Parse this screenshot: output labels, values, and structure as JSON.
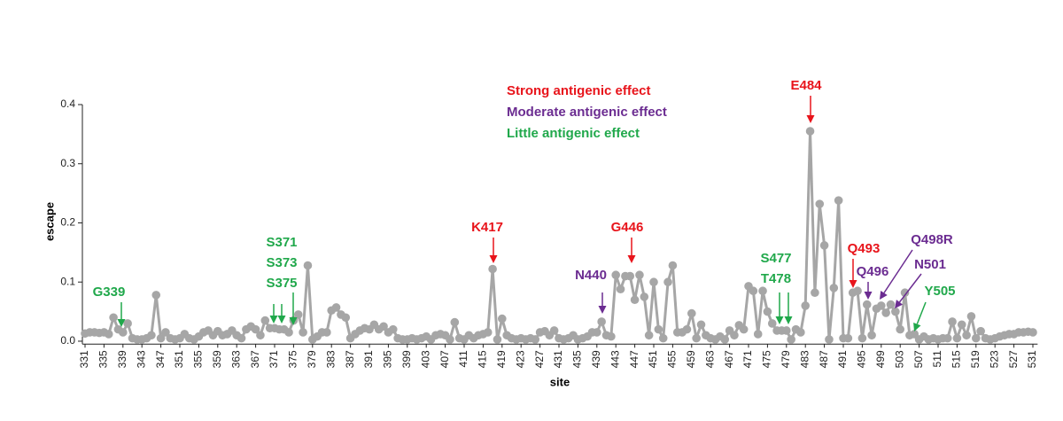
{
  "chart_data": {
    "type": "line",
    "x_label": "site",
    "y_label": "escape",
    "xlim": [
      330,
      532
    ],
    "ylim": [
      -0.005,
      0.4
    ],
    "yticks": [
      {
        "value": 0,
        "label": "0.0"
      },
      0.1,
      0.2,
      0.3,
      0.4
    ],
    "xticks": [
      331,
      335,
      339,
      343,
      347,
      351,
      355,
      359,
      363,
      367,
      371,
      375,
      379,
      383,
      387,
      391,
      395,
      399,
      403,
      407,
      411,
      415,
      419,
      423,
      427,
      431,
      435,
      439,
      443,
      447,
      451,
      455,
      459,
      463,
      467,
      471,
      475,
      479,
      483,
      487,
      491,
      495,
      499,
      503,
      507,
      511,
      515,
      519,
      523,
      527,
      531
    ],
    "color": "#a6a6a6",
    "x": [
      331,
      332,
      333,
      334,
      335,
      336,
      337,
      338,
      339,
      340,
      341,
      342,
      343,
      344,
      345,
      346,
      347,
      348,
      349,
      350,
      351,
      352,
      353,
      354,
      355,
      356,
      357,
      358,
      359,
      360,
      361,
      362,
      363,
      364,
      365,
      366,
      367,
      368,
      369,
      370,
      371,
      372,
      373,
      374,
      375,
      376,
      377,
      378,
      379,
      380,
      381,
      382,
      383,
      384,
      385,
      386,
      387,
      388,
      389,
      390,
      391,
      392,
      393,
      394,
      395,
      396,
      397,
      398,
      399,
      400,
      401,
      402,
      403,
      404,
      405,
      406,
      407,
      408,
      409,
      410,
      411,
      412,
      413,
      414,
      415,
      416,
      417,
      418,
      419,
      420,
      421,
      422,
      423,
      424,
      425,
      426,
      427,
      428,
      429,
      430,
      431,
      432,
      433,
      434,
      435,
      436,
      437,
      438,
      439,
      440,
      441,
      442,
      443,
      444,
      445,
      446,
      447,
      448,
      449,
      450,
      451,
      452,
      453,
      454,
      455,
      456,
      457,
      458,
      459,
      460,
      461,
      462,
      463,
      464,
      465,
      466,
      467,
      468,
      469,
      470,
      471,
      472,
      473,
      474,
      475,
      476,
      477,
      478,
      479,
      480,
      481,
      482,
      483,
      484,
      485,
      486,
      487,
      488,
      489,
      490,
      491,
      492,
      493,
      494,
      495,
      496,
      497,
      498,
      499,
      500,
      501,
      502,
      503,
      504,
      505,
      506,
      507,
      508,
      509,
      510,
      511,
      512,
      513,
      514,
      515,
      516,
      517,
      518,
      519,
      520,
      521,
      522,
      523,
      524,
      525,
      526,
      527,
      528,
      529,
      530,
      531
    ],
    "values": [
      0.013,
      0.015,
      0.015,
      0.014,
      0.015,
      0.012,
      0.04,
      0.02,
      0.015,
      0.03,
      0.005,
      0.003,
      0.003,
      0.005,
      0.01,
      0.078,
      0.005,
      0.015,
      0.005,
      0.003,
      0.005,
      0.012,
      0.005,
      0.003,
      0.008,
      0.015,
      0.018,
      0.01,
      0.017,
      0.01,
      0.012,
      0.018,
      0.01,
      0.005,
      0.02,
      0.025,
      0.02,
      0.01,
      0.035,
      0.022,
      0.022,
      0.02,
      0.02,
      0.015,
      0.035,
      0.045,
      0.015,
      0.128,
      0.003,
      0.008,
      0.015,
      0.015,
      0.052,
      0.057,
      0.045,
      0.04,
      0.005,
      0.012,
      0.018,
      0.022,
      0.02,
      0.028,
      0.02,
      0.025,
      0.015,
      0.02,
      0.005,
      0.003,
      0.003,
      0.005,
      0.003,
      0.005,
      0.008,
      0.003,
      0.01,
      0.012,
      0.01,
      0.003,
      0.032,
      0.005,
      0.003,
      0.01,
      0.005,
      0.01,
      0.012,
      0.015,
      0.122,
      0.003,
      0.038,
      0.01,
      0.005,
      0.003,
      0.005,
      0.003,
      0.005,
      0.003,
      0.015,
      0.017,
      0.01,
      0.018,
      0.005,
      0.003,
      0.005,
      0.01,
      0.003,
      0.005,
      0.008,
      0.015,
      0.015,
      0.033,
      0.01,
      0.008,
      0.112,
      0.088,
      0.11,
      0.11,
      0.07,
      0.112,
      0.075,
      0.01,
      0.1,
      0.02,
      0.005,
      0.1,
      0.128,
      0.015,
      0.015,
      0.02,
      0.047,
      0.005,
      0.028,
      0.01,
      0.005,
      0.003,
      0.008,
      0.003,
      0.018,
      0.01,
      0.027,
      0.02,
      0.093,
      0.085,
      0.012,
      0.085,
      0.05,
      0.03,
      0.018,
      0.018,
      0.018,
      0.003,
      0.02,
      0.015,
      0.06,
      0.355,
      0.082,
      0.232,
      0.162,
      0.003,
      0.09,
      0.238,
      0.005,
      0.005,
      0.082,
      0.085,
      0.005,
      0.062,
      0.01,
      0.055,
      0.06,
      0.048,
      0.062,
      0.05,
      0.02,
      0.082,
      0.01,
      0.012,
      0.003,
      0.008,
      0.003,
      0.005,
      0.003,
      0.005,
      0.005,
      0.033,
      0.005,
      0.028,
      0.01,
      0.042,
      0.005,
      0.017,
      0.005,
      0.003,
      0.005,
      0.008,
      0.01,
      0.012,
      0.012,
      0.015,
      0.015,
      0.016,
      0.015
    ],
    "legend": [
      {
        "name": "Strong antigenic effect",
        "color": "#e8141b"
      },
      {
        "name": "Moderate antigenic effect",
        "color": "#6b2c91"
      },
      {
        "name": "Little antigenic effect",
        "color": "#20a84b"
      }
    ],
    "annotations": [
      {
        "text": "G339",
        "color": "#20a84b"
      },
      {
        "text": "S371",
        "color": "#20a84b"
      },
      {
        "text": "S373",
        "color": "#20a84b"
      },
      {
        "text": "S375",
        "color": "#20a84b"
      },
      {
        "text": "K417",
        "color": "#e8141b"
      },
      {
        "text": "N440",
        "color": "#6b2c91"
      },
      {
        "text": "G446",
        "color": "#e8141b"
      },
      {
        "text": "S477",
        "color": "#20a84b"
      },
      {
        "text": "T478",
        "color": "#20a84b"
      },
      {
        "text": "E484",
        "color": "#e8141b"
      },
      {
        "text": "Q493",
        "color": "#e8141b"
      },
      {
        "text": "Q496",
        "color": "#6b2c91"
      },
      {
        "text": "Q498R",
        "color": "#6b2c91"
      },
      {
        "text": "N501",
        "color": "#6b2c91"
      },
      {
        "text": "Y505",
        "color": "#20a84b"
      }
    ]
  }
}
